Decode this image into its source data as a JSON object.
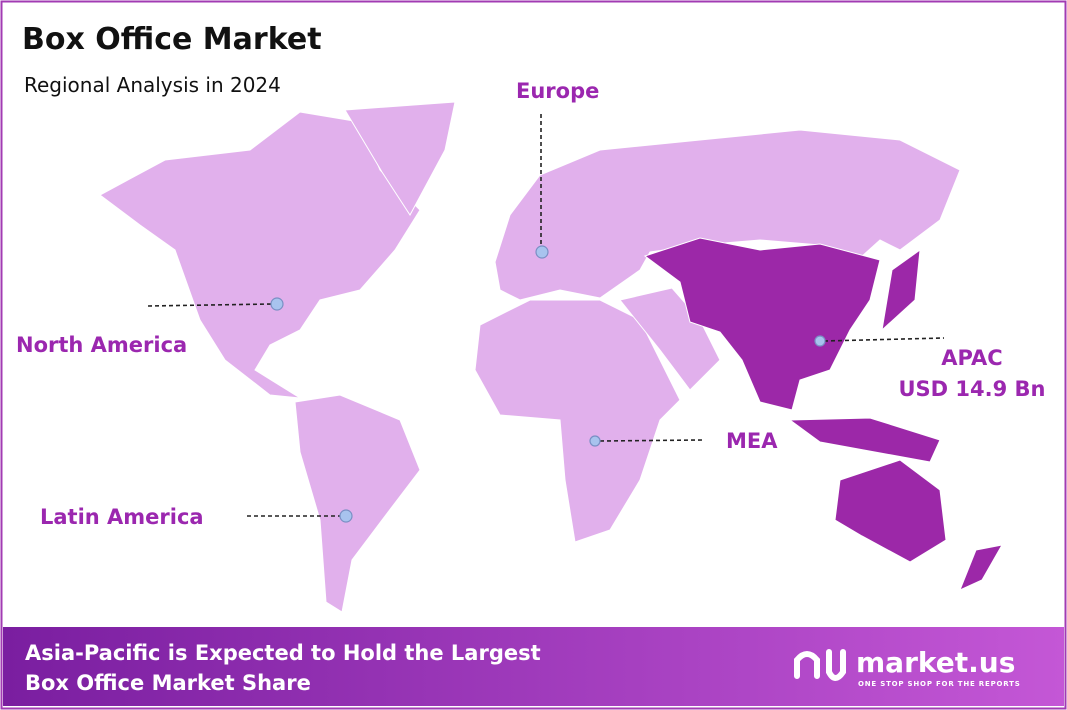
{
  "header": {
    "title": "Box Office Market",
    "subtitle": "Regional Analysis in 2024"
  },
  "regions": [
    {
      "label": "North America"
    },
    {
      "label": "Europe"
    },
    {
      "label": "APAC",
      "value": "USD 14.9 Bn"
    },
    {
      "label": "MEA"
    },
    {
      "label": "Latin America"
    }
  ],
  "footer": {
    "lines": [
      "Asia-Pacific is Expected to Hold the Largest",
      "Box Office Market Share"
    ],
    "brand": "market.us",
    "tagline": "ONE STOP SHOP FOR THE REPORTS"
  }
}
